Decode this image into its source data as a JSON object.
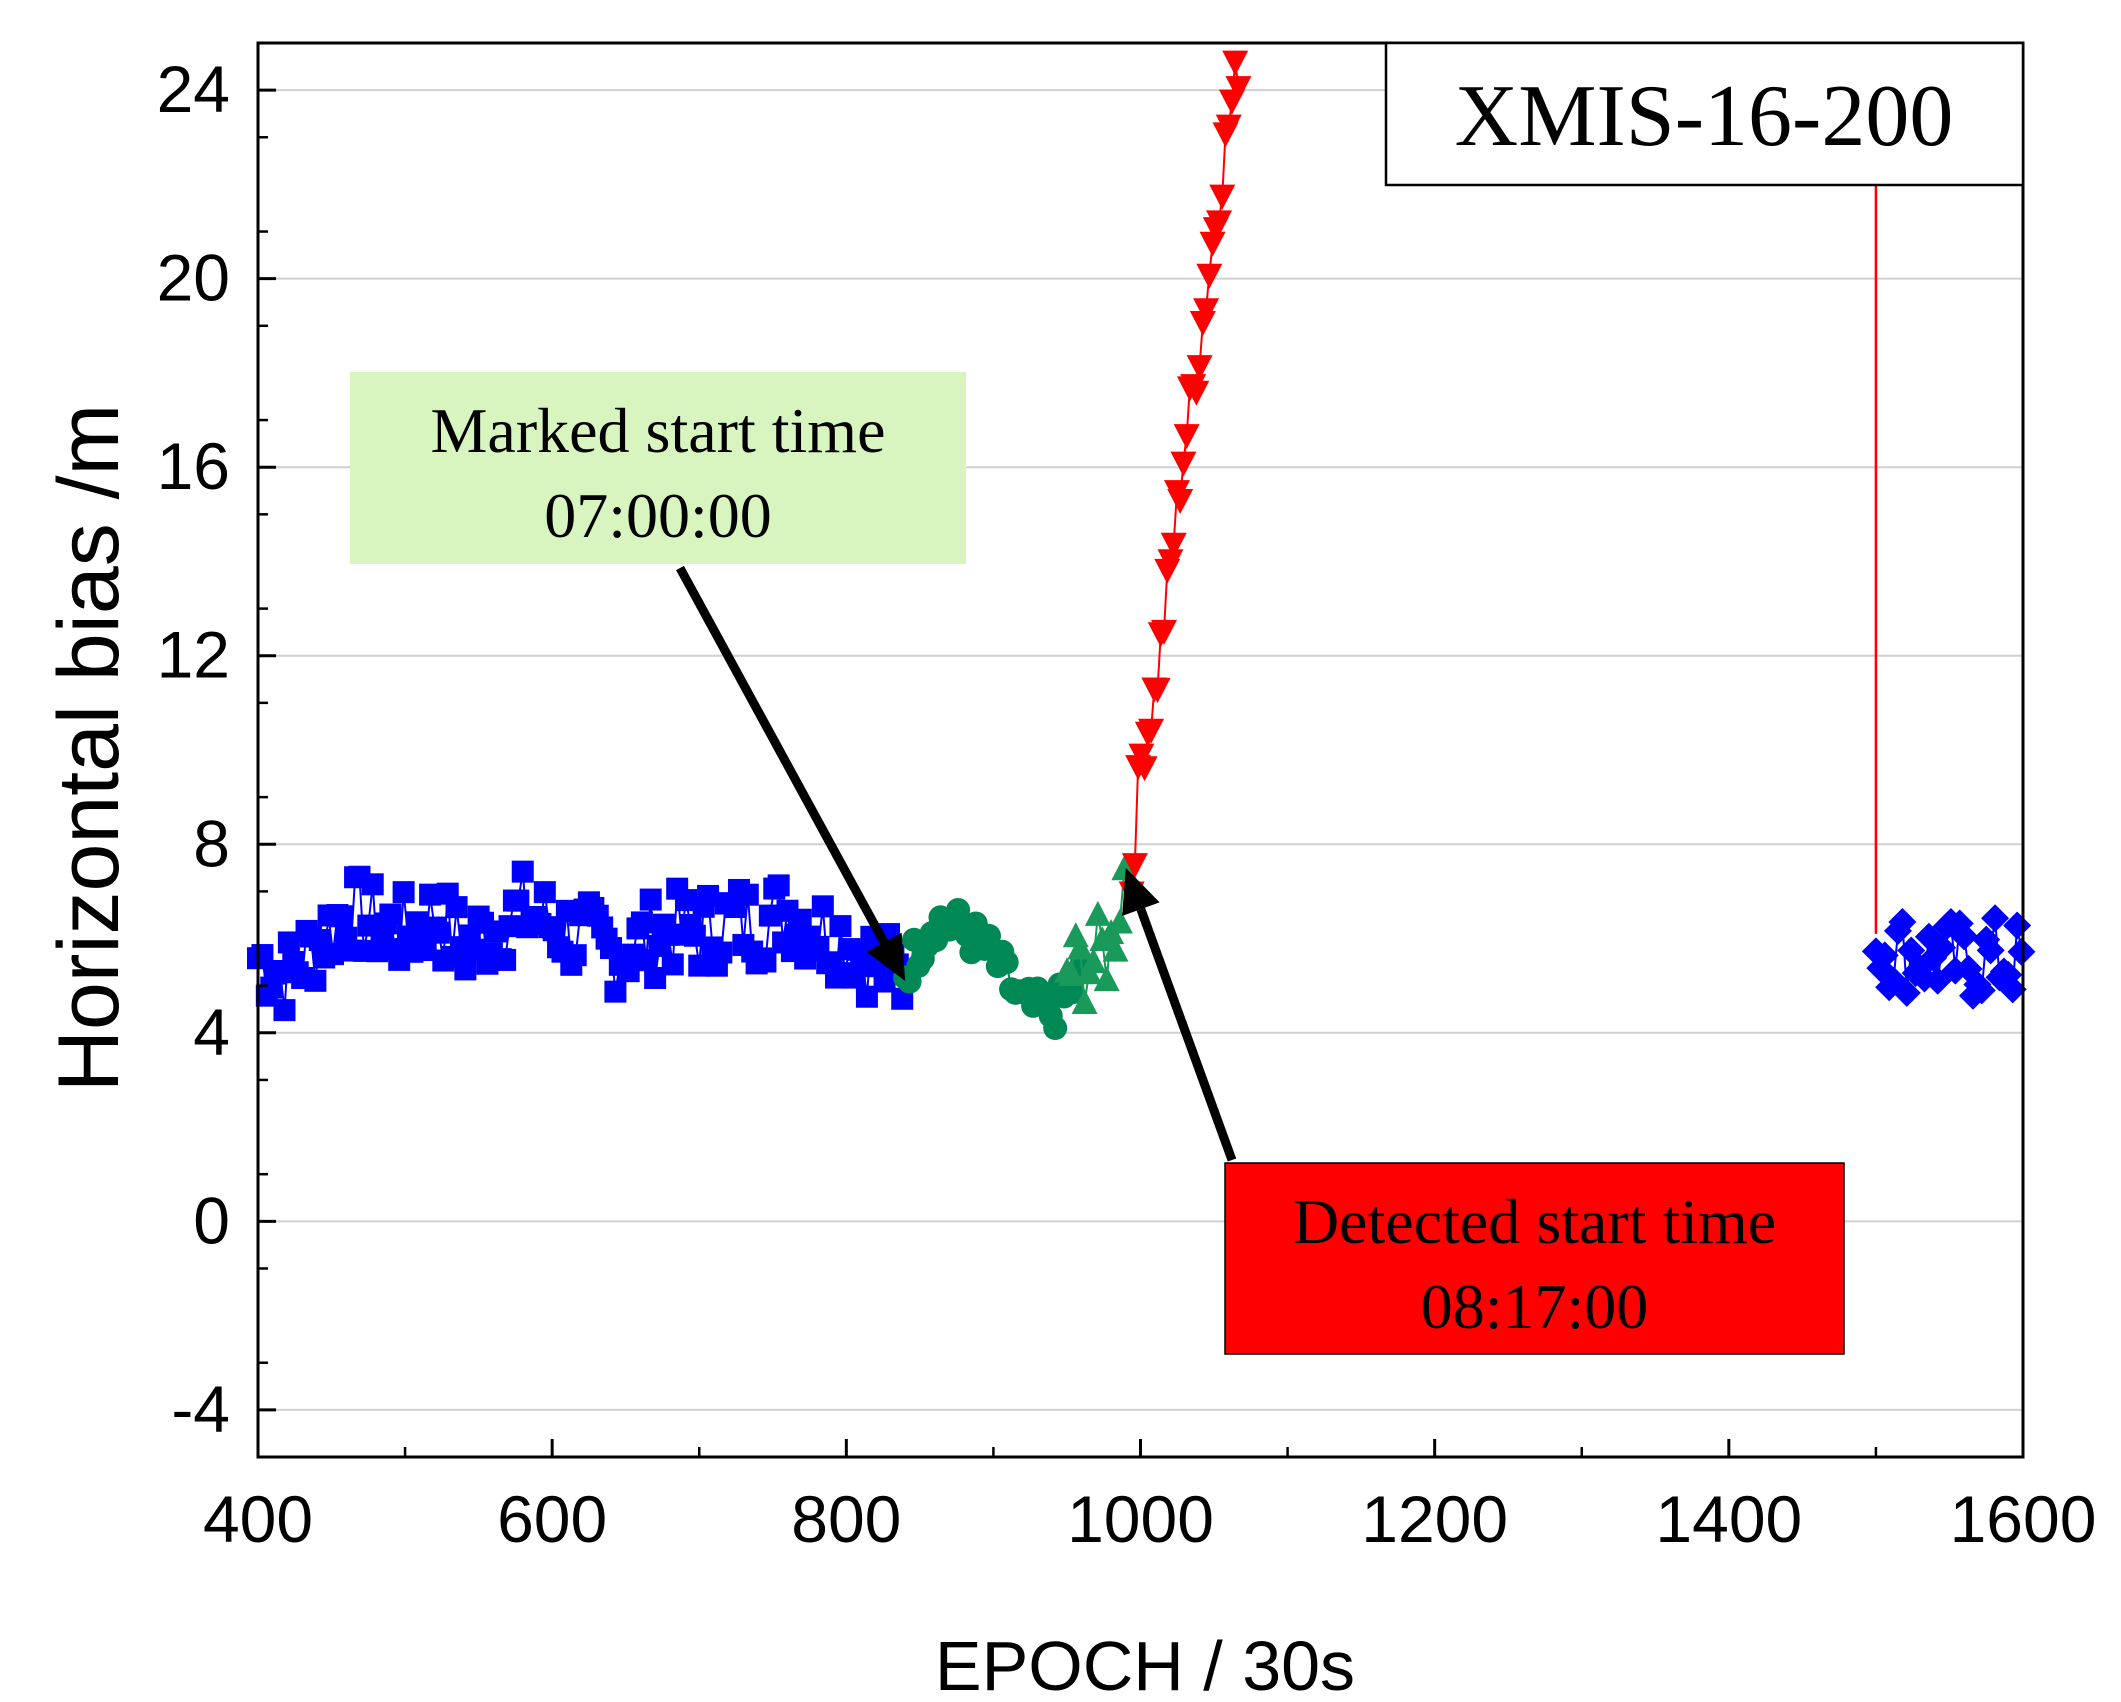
{
  "chart_data": {
    "type": "scatter",
    "title": "XMIS-16-200",
    "xlabel": "EPOCH / 30s",
    "ylabel": "Horizontal bias /m",
    "xlim": [
      400,
      1600
    ],
    "ylim": [
      -5,
      25
    ],
    "x_ticks": [
      400,
      600,
      800,
      1000,
      1200,
      1400,
      1600
    ],
    "y_ticks": [
      -4,
      0,
      4,
      8,
      12,
      16,
      20,
      24
    ],
    "grid": "horizontal",
    "series": [
      {
        "marker": "square",
        "color": "#0000ff",
        "x": [
          400,
          420,
          440,
          460,
          480,
          500,
          520,
          540,
          560,
          580,
          600,
          620,
          640,
          660,
          680,
          700,
          720,
          740,
          760,
          780,
          800,
          820,
          840
        ],
        "y": [
          5.6,
          5.2,
          5.9,
          6.6,
          6.3,
          6.1,
          6.5,
          5.8,
          6.2,
          6.6,
          6.3,
          6.0,
          5.7,
          5.9,
          6.2,
          6.1,
          6.4,
          6.3,
          6.6,
          6.2,
          6.0,
          5.5,
          5.1
        ],
        "y_range": [
          4.1,
          7.9
        ]
      },
      {
        "marker": "circle",
        "color": "#008855",
        "x": [
          840,
          860,
          880,
          900,
          920,
          940,
          960
        ],
        "y": [
          5.3,
          6.4,
          6.2,
          5.6,
          4.6,
          4.4,
          5.2
        ],
        "y_range": [
          4.1,
          7.3
        ]
      },
      {
        "marker": "triangle-up",
        "color": "#1a9a5a",
        "x": [
          950,
          960,
          970,
          980,
          990
        ],
        "y": [
          5.3,
          5.4,
          5.6,
          5.8,
          7.6
        ],
        "y_range": [
          4.5,
          8.4
        ]
      },
      {
        "marker": "triangle-down",
        "color": "#ff0000",
        "x": [
          994,
          1000,
          1010,
          1020,
          1030,
          1040,
          1050,
          1060,
          1068
        ],
        "y": [
          7.2,
          9.8,
          11.2,
          13.8,
          16.5,
          18.5,
          21.0,
          23.3,
          24.8
        ],
        "extra_points": [
          [
            1500,
            6.1
          ]
        ]
      },
      {
        "marker": "diamond",
        "color": "#0000ff",
        "x": [
          1500,
          1520,
          1540,
          1560,
          1580,
          1600
        ],
        "y": [
          5.9,
          5.7,
          5.6,
          5.5,
          5.6,
          5.5
        ],
        "y_range": [
          4.3,
          7.1
        ]
      }
    ],
    "annotations": [
      {
        "lines": [
          "Marked start time",
          "07:00:00"
        ],
        "background": "#d8f5c0",
        "arrow_to": [
          840,
          5.1
        ]
      },
      {
        "lines": [
          "Detected start time",
          "08:17:00"
        ],
        "background": "#ff0000",
        "arrow_to": [
          990,
          7.5
        ]
      }
    ]
  }
}
